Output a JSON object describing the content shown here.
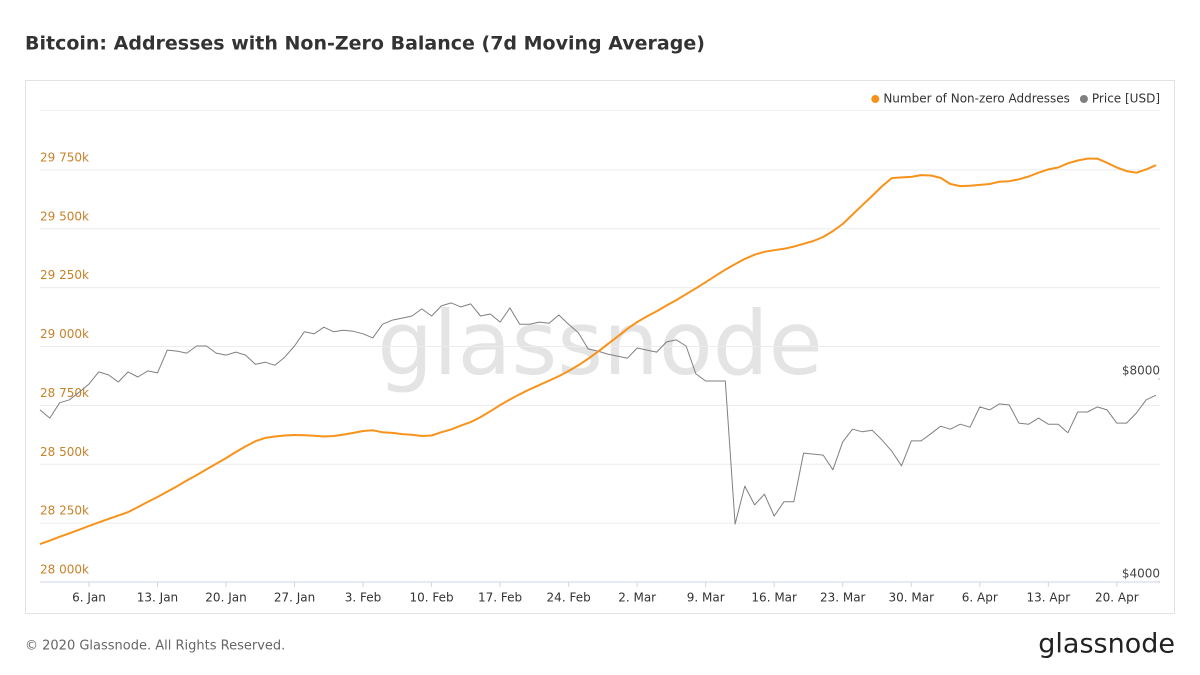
{
  "chart_data": {
    "type": "line",
    "title": "Bitcoin: Addresses with Non-Zero Balance (7d Moving Average)",
    "watermark": "glassnode",
    "footer": "© 2020 Glassnode. All Rights Reserved.",
    "logo": "glassnode",
    "legend": "top-right",
    "grid": true,
    "x": [
      "1. Jan",
      "2. Jan",
      "3. Jan",
      "4. Jan",
      "5. Jan",
      "6. Jan",
      "7. Jan",
      "8. Jan",
      "9. Jan",
      "10. Jan",
      "11. Jan",
      "12. Jan",
      "13. Jan",
      "14. Jan",
      "15. Jan",
      "16. Jan",
      "17. Jan",
      "18. Jan",
      "19. Jan",
      "20. Jan",
      "21. Jan",
      "22. Jan",
      "23. Jan",
      "24. Jan",
      "25. Jan",
      "26. Jan",
      "27. Jan",
      "28. Jan",
      "29. Jan",
      "30. Jan",
      "31. Jan",
      "1. Feb",
      "2. Feb",
      "3. Feb",
      "4. Feb",
      "5. Feb",
      "6. Feb",
      "7. Feb",
      "8. Feb",
      "9. Feb",
      "10. Feb",
      "11. Feb",
      "12. Feb",
      "13. Feb",
      "14. Feb",
      "15. Feb",
      "16. Feb",
      "17. Feb",
      "18. Feb",
      "19. Feb",
      "20. Feb",
      "21. Feb",
      "22. Feb",
      "23. Feb",
      "24. Feb",
      "25. Feb",
      "26. Feb",
      "27. Feb",
      "28. Feb",
      "29. Feb",
      "1. Mar",
      "2. Mar",
      "3. Mar",
      "4. Mar",
      "5. Mar",
      "6. Mar",
      "7. Mar",
      "8. Mar",
      "9. Mar",
      "10. Mar",
      "11. Mar",
      "12. Mar",
      "13. Mar",
      "14. Mar",
      "15. Mar",
      "16. Mar",
      "17. Mar",
      "18. Mar",
      "19. Mar",
      "20. Mar",
      "21. Mar",
      "22. Mar",
      "23. Mar",
      "24. Mar",
      "25. Mar",
      "26. Mar",
      "27. Mar",
      "28. Mar",
      "29. Mar",
      "30. Mar",
      "31. Mar",
      "1. Apr",
      "2. Apr",
      "3. Apr",
      "4. Apr",
      "5. Apr",
      "6. Apr",
      "7. Apr",
      "8. Apr",
      "9. Apr",
      "10. Apr",
      "11. Apr",
      "12. Apr",
      "13. Apr",
      "14. Apr",
      "15. Apr",
      "16. Apr",
      "17. Apr",
      "18. Apr",
      "19. Apr",
      "20. Apr",
      "21. Apr",
      "22. Apr",
      "23. Apr",
      "24. Apr"
    ],
    "xticks": [
      "6. Jan",
      "13. Jan",
      "20. Jan",
      "27. Jan",
      "3. Feb",
      "10. Feb",
      "17. Feb",
      "24. Feb",
      "2. Mar",
      "9. Mar",
      "16. Mar",
      "23. Mar",
      "30. Mar",
      "6. Apr",
      "13. Apr",
      "20. Apr"
    ],
    "ylim": [
      28000,
      30000
    ],
    "yticks": [
      {
        "value": 28000,
        "label": "28 000k"
      },
      {
        "value": 28250,
        "label": "28 250k"
      },
      {
        "value": 28500,
        "label": "28 500k"
      },
      {
        "value": 28750,
        "label": "28 750k"
      },
      {
        "value": 29000,
        "label": "29 000k"
      },
      {
        "value": 29250,
        "label": "29 250k"
      },
      {
        "value": 29500,
        "label": "29 500k"
      },
      {
        "value": 29750,
        "label": "29 750k"
      }
    ],
    "y2lim": [
      4000,
      13280
    ],
    "y2ticks": [
      {
        "value": 4000,
        "label": "$4000"
      },
      {
        "value": 8000,
        "label": "$8000"
      }
    ],
    "series": [
      {
        "name": "Number of Non-zero Addresses",
        "color": "#f7931a",
        "values": [
          28161,
          28176,
          28192,
          28207,
          28222,
          28238,
          28253,
          28268,
          28282,
          28297,
          28318,
          28340,
          28361,
          28384,
          28407,
          28431,
          28454,
          28478,
          28502,
          28526,
          28552,
          28576,
          28598,
          28612,
          28618,
          28622,
          28624,
          28623,
          28621,
          28618,
          28620,
          28626,
          28633,
          28641,
          28644,
          28636,
          28633,
          28628,
          28625,
          28620,
          28622,
          28636,
          28648,
          28664,
          28679,
          28700,
          28725,
          28751,
          28775,
          28797,
          28818,
          28836,
          28855,
          28874,
          28896,
          28920,
          28948,
          28978,
          29010,
          29042,
          29075,
          29104,
          29128,
          29150,
          29174,
          29197,
          29222,
          29247,
          29273,
          29300,
          29326,
          29350,
          29372,
          29390,
          29402,
          29409,
          29415,
          29424,
          29436,
          29448,
          29465,
          29490,
          29520,
          29560,
          29600,
          29639,
          29680,
          29715,
          29718,
          29720,
          29728,
          29726,
          29716,
          29690,
          29681,
          29683,
          29686,
          29690,
          29700,
          29702,
          29710,
          29722,
          29738,
          29752,
          29760,
          29778,
          29790,
          29798,
          29798,
          29780,
          29760,
          29745,
          29738,
          29752,
          29770
        ]
      },
      {
        "name": "Price [USD]",
        "color": "#808080",
        "axis": "y2",
        "values": [
          7390,
          7230,
          7530,
          7590,
          7740,
          7900,
          8140,
          8080,
          7940,
          8140,
          8040,
          8160,
          8120,
          8570,
          8550,
          8510,
          8650,
          8650,
          8510,
          8470,
          8530,
          8470,
          8290,
          8330,
          8270,
          8430,
          8650,
          8930,
          8890,
          9020,
          8930,
          8960,
          8940,
          8890,
          8810,
          9080,
          9160,
          9200,
          9240,
          9380,
          9240,
          9440,
          9500,
          9420,
          9480,
          9240,
          9280,
          9120,
          9400,
          9080,
          9080,
          9120,
          9100,
          9260,
          9080,
          8910,
          8590,
          8550,
          8490,
          8450,
          8410,
          8610,
          8570,
          8530,
          8730,
          8770,
          8650,
          8100,
          7960,
          7960,
          7960,
          5140,
          5890,
          5520,
          5730,
          5300,
          5580,
          5580,
          6540,
          6520,
          6500,
          6210,
          6760,
          7010,
          6960,
          6990,
          6800,
          6580,
          6290,
          6780,
          6780,
          6920,
          7070,
          7010,
          7110,
          7050,
          7450,
          7390,
          7510,
          7490,
          7130,
          7110,
          7230,
          7110,
          7110,
          6940,
          7350,
          7350,
          7450,
          7390,
          7130,
          7130,
          7330,
          7590,
          7680
        ]
      }
    ]
  }
}
